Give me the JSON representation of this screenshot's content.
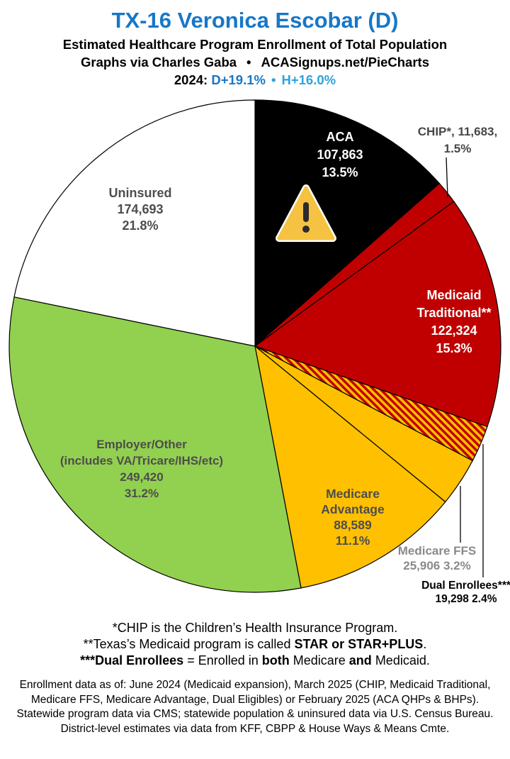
{
  "header": {
    "title": "TX-16 Veronica Escobar (D)",
    "subtitle": "Estimated Healthcare Program Enrollment of Total Population",
    "credit_left": "Graphs via Charles Gaba",
    "credit_sep": "•",
    "credit_right": "ACASignups.net/PieCharts",
    "year_prefix": "2024:",
    "d_margin": "D+19.1%",
    "margin_sep": "•",
    "h_margin": "H+16.0%"
  },
  "colors": {
    "title_blue": "#1777C7",
    "d_blue": "#1777C7",
    "h_blue": "#2EA3DC",
    "slice_black": "#000000",
    "slice_dark_red": "#C00000",
    "slice_gold": "#FFC000",
    "slice_green": "#92D050",
    "slice_white": "#FFFFFF",
    "warning_amber": "#F5C242"
  },
  "chart_data": {
    "type": "pie",
    "title": "Estimated Healthcare Program Enrollment of Total Population",
    "start_angle_deg": 0,
    "direction": "clockwise",
    "legend_position": "labels-on-slices",
    "slices": [
      {
        "id": "aca",
        "name": "ACA",
        "value": 107863,
        "pct": 13.5,
        "color": "#000000",
        "hatch": false
      },
      {
        "id": "chip",
        "name": "CHIP",
        "value": 11683,
        "pct": 1.5,
        "color": "#C00000",
        "hatch": false
      },
      {
        "id": "medicaid-traditional",
        "name": "Medicaid Traditional",
        "value": 122324,
        "pct": 15.3,
        "color": "#C00000",
        "hatch": false
      },
      {
        "id": "dual-enrollees",
        "name": "Dual Enrollees",
        "value": 19298,
        "pct": 2.4,
        "color": "#C00000",
        "hatch": true
      },
      {
        "id": "medicare-ffs",
        "name": "Medicare FFS",
        "value": 25906,
        "pct": 3.2,
        "color": "#FFC000",
        "hatch": false
      },
      {
        "id": "medicare-advantage",
        "name": "Medicare Advantage",
        "value": 88589,
        "pct": 11.1,
        "color": "#FFC000",
        "hatch": false
      },
      {
        "id": "employer-other",
        "name": "Employer/Other",
        "value": 249420,
        "pct": 31.2,
        "color": "#92D050",
        "hatch": false
      },
      {
        "id": "uninsured",
        "name": "Uninsured",
        "value": 174693,
        "pct": 21.8,
        "color": "#FFFFFF",
        "hatch": false
      }
    ]
  },
  "labels": {
    "aca": {
      "l1": "ACA",
      "l2": "107,863",
      "l3": "13.5%"
    },
    "chip": {
      "l1": "CHIP*, 11,683,",
      "l2": "1.5%"
    },
    "medicaid": {
      "l1": "Medicaid",
      "l2": "Traditional**",
      "l3": "122,324",
      "l4": "15.3%"
    },
    "uninsured": {
      "l1": "Uninsured",
      "l2": "174,693",
      "l3": "21.8%"
    },
    "employer": {
      "l1": "Employer/Other",
      "l2": "(includes VA/Tricare/IHS/etc)",
      "l3": "249,420",
      "l4": "31.2%"
    },
    "advantage": {
      "l1": "Medicare",
      "l2": "Advantage",
      "l3": "88,589",
      "l4": "11.1%"
    },
    "ffs": {
      "l1": "Medicare FFS",
      "l2": "25,906 3.2%"
    },
    "dual": {
      "l1": "Dual Enrollees***",
      "l2": "19,298 2.4%"
    }
  },
  "footnotes": {
    "line1": "*CHIP is the Children’s Health Insurance Program.",
    "line2_pre": "**Texas’s Medicaid program is called ",
    "line2_bold": "STAR or STAR+PLUS",
    "line2_post": ".",
    "line3_bold1": "***Dual Enrollees",
    "line3_seg1": " = Enrolled in ",
    "line3_bold2": "both",
    "line3_seg2": " Medicare ",
    "line3_bold3": "and",
    "line3_seg3": " Medicaid."
  },
  "source": {
    "line1": "Enrollment data as of: June 2024 (Medicaid expansion), March 2025 (CHIP, Medicaid Traditional,",
    "line2": "Medicare FFS, Medicare Advantage, Dual Eligibles) or February 2025 (ACA QHPs & BHPs).",
    "line3": "Statewide program data via CMS; statewide population & uninsured data via U.S. Census Bureau.",
    "line4": "District-level estimates via data from KFF, CBPP & House Ways & Means Cmte."
  }
}
